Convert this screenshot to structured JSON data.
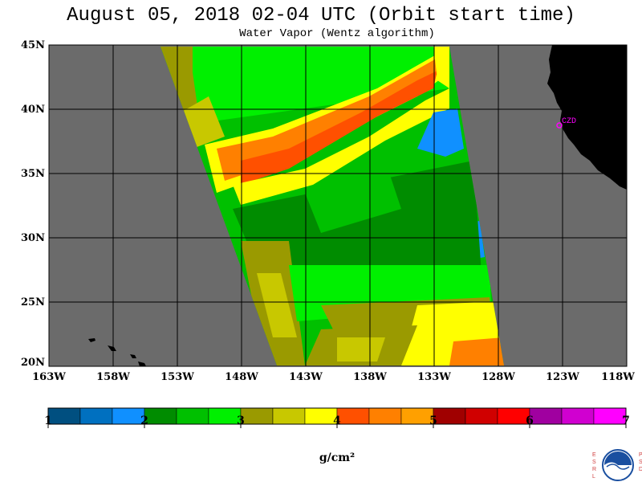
{
  "header": {
    "title": "August 05, 2018  02-04 UTC  (Orbit start time)",
    "subtitle": "Water Vapor (Wentz algorithm)"
  },
  "map": {
    "lat_labels": [
      "45N",
      "40N",
      "35N",
      "30N",
      "25N",
      "20N"
    ],
    "lon_labels": [
      "163W",
      "158W",
      "153W",
      "148W",
      "143W",
      "138W",
      "133W",
      "128W",
      "123W",
      "118W"
    ],
    "station_label": "CZD",
    "colors": {
      "no_data": "#6b6b6b",
      "land": "#000000",
      "grid": "#000000",
      "station": "#ff00ff"
    }
  },
  "colorbar": {
    "tick_labels": [
      "1",
      "2",
      "3",
      "4",
      "5",
      "6",
      "7"
    ],
    "unit": "g/cm²",
    "colors": [
      "#004f80",
      "#0070c0",
      "#1090ff",
      "#008c00",
      "#00c000",
      "#00f000",
      "#9a9a00",
      "#c8c800",
      "#ffff00",
      "#ff5000",
      "#ff8000",
      "#ffa000",
      "#a00000",
      "#d00000",
      "#ff0000",
      "#a000a0",
      "#d000d0",
      "#ff00ff"
    ]
  },
  "logo": {
    "left_letters": [
      "E",
      "S",
      "R",
      "L"
    ],
    "right_letters": [
      "P",
      "S",
      "D"
    ],
    "center_text": "NOAA"
  }
}
